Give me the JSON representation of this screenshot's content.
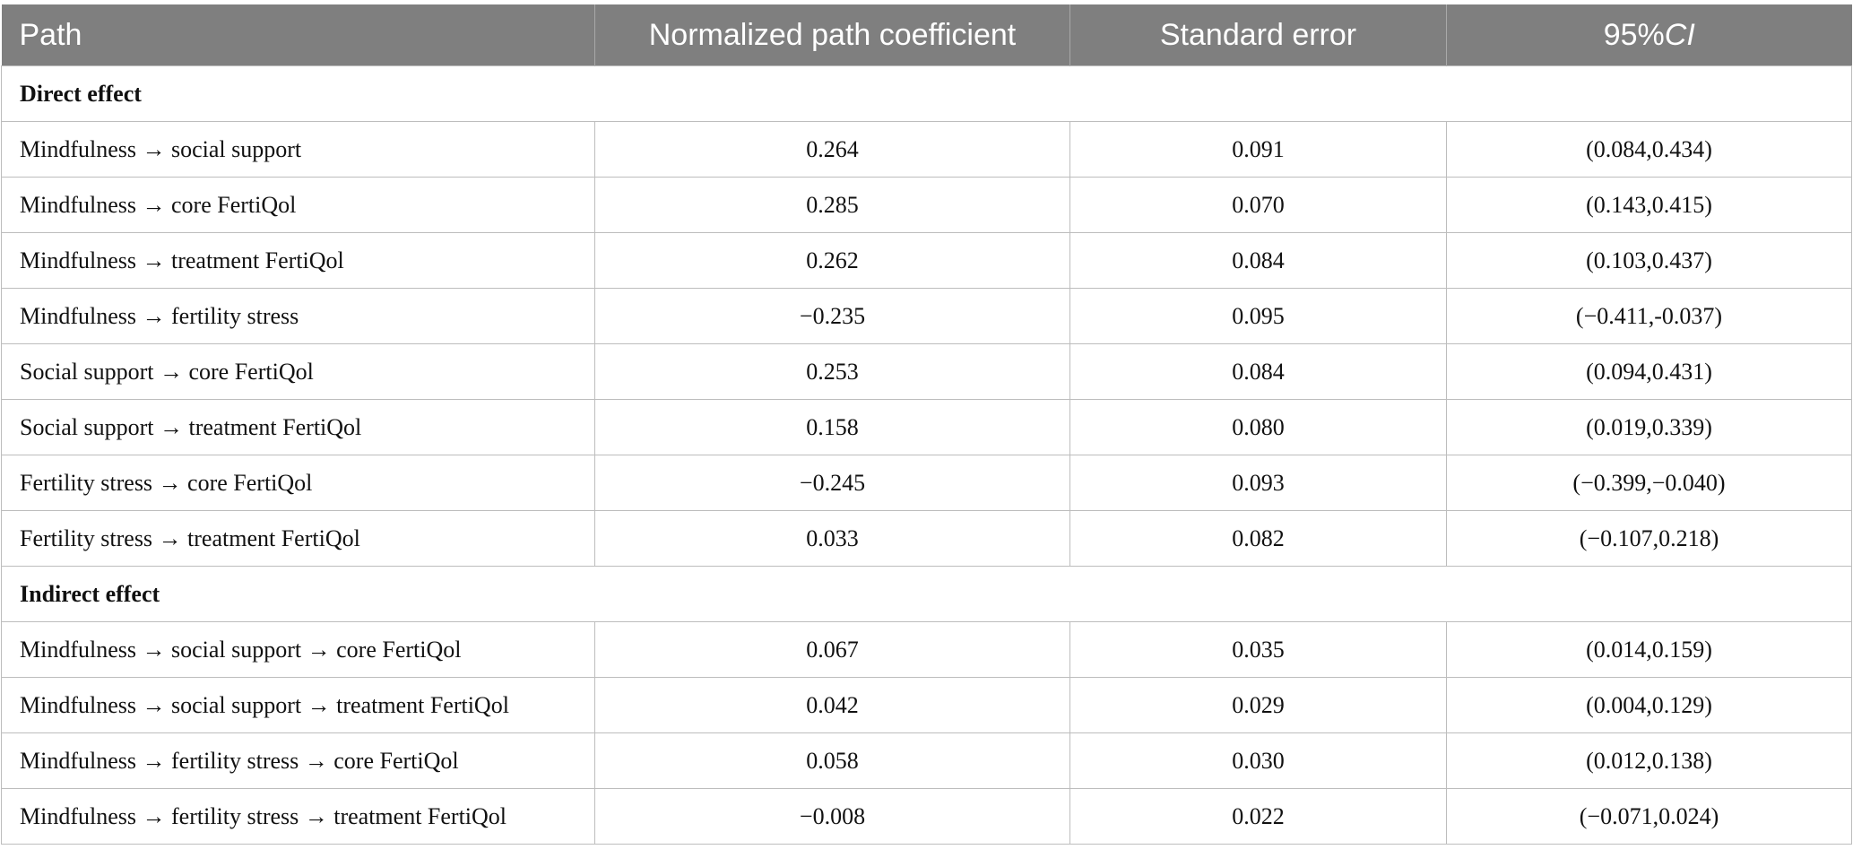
{
  "columns": {
    "path": "Path",
    "coef": "Normalized path coefficient",
    "se": "Standard error",
    "ci_prefix": "95%",
    "ci_italic": "CI"
  },
  "sections": [
    {
      "label": "Direct effect",
      "rows": [
        {
          "path": "Mindfulness → social support",
          "coef": "0.264",
          "se": "0.091",
          "ci": "(0.084,0.434)"
        },
        {
          "path": "Mindfulness → core FertiQol",
          "coef": "0.285",
          "se": "0.070",
          "ci": "(0.143,0.415)"
        },
        {
          "path": "Mindfulness → treatment FertiQol",
          "coef": "0.262",
          "se": "0.084",
          "ci": "(0.103,0.437)"
        },
        {
          "path": "Mindfulness → fertility stress",
          "coef": "−0.235",
          "se": "0.095",
          "ci": "(−0.411,-0.037)"
        },
        {
          "path": "Social support → core FertiQol",
          "coef": "0.253",
          "se": "0.084",
          "ci": "(0.094,0.431)"
        },
        {
          "path": "Social support → treatment FertiQol",
          "coef": "0.158",
          "se": "0.080",
          "ci": "(0.019,0.339)"
        },
        {
          "path": "Fertility stress → core FertiQol",
          "coef": "−0.245",
          "se": "0.093",
          "ci": "(−0.399,−0.040)"
        },
        {
          "path": "Fertility stress → treatment FertiQol",
          "coef": "0.033",
          "se": "0.082",
          "ci": "(−0.107,0.218)"
        }
      ]
    },
    {
      "label": "Indirect effect",
      "rows": [
        {
          "path": "Mindfulness → social support → core FertiQol",
          "coef": "0.067",
          "se": "0.035",
          "ci": "(0.014,0.159)"
        },
        {
          "path": "Mindfulness → social support → treatment FertiQol",
          "coef": "0.042",
          "se": "0.029",
          "ci": "(0.004,0.129)"
        },
        {
          "path": "Mindfulness → fertility stress → core FertiQol",
          "coef": "0.058",
          "se": "0.030",
          "ci": "(0.012,0.138)"
        },
        {
          "path": "Mindfulness → fertility stress → treatment FertiQol",
          "coef": "−0.008",
          "se": "0.022",
          "ci": "(−0.071,0.024)"
        }
      ]
    }
  ]
}
